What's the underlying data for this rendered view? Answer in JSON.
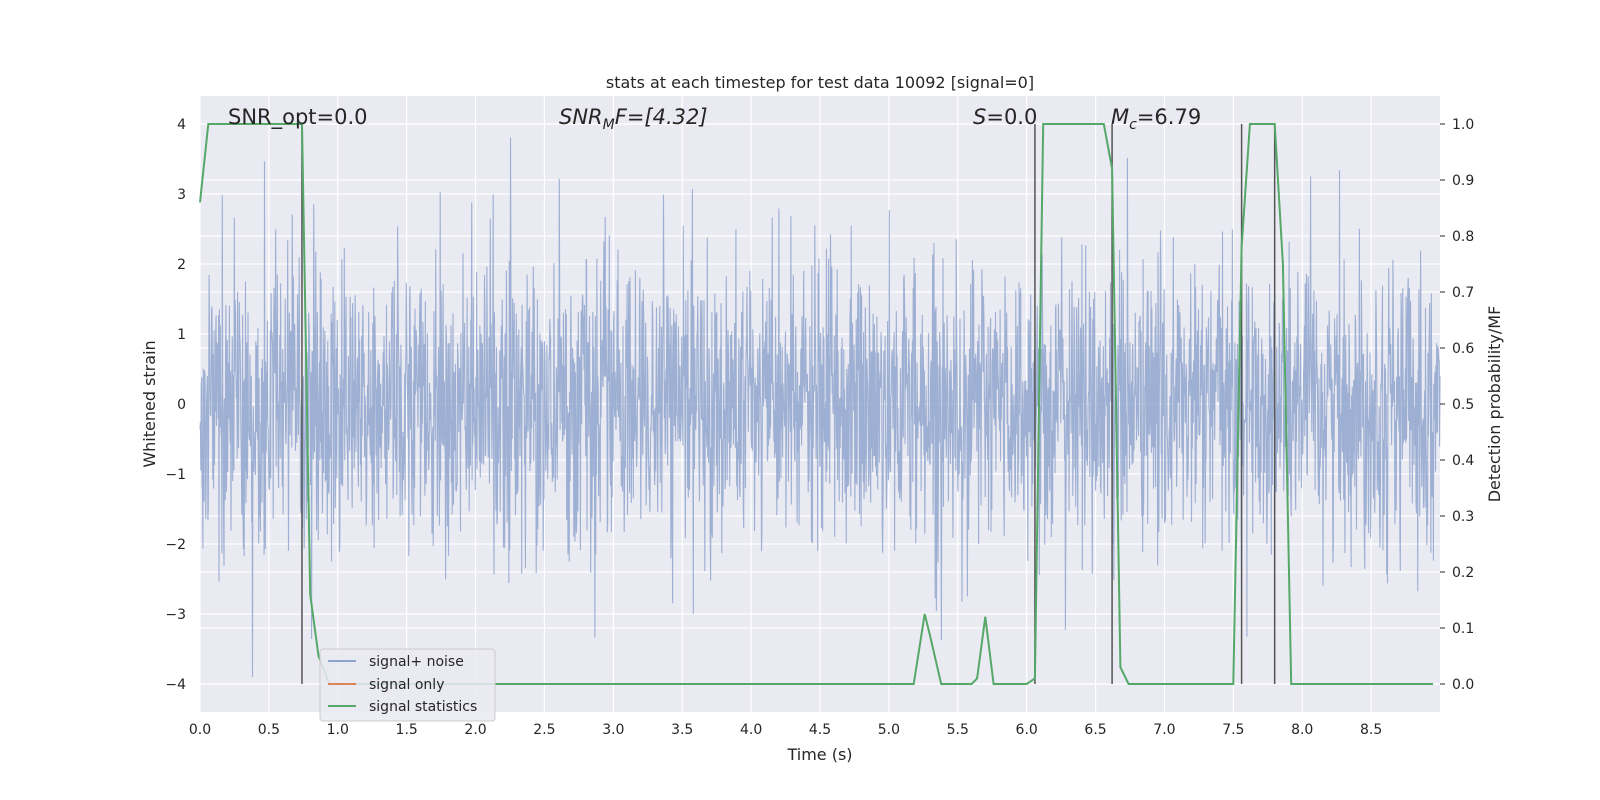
{
  "chart_data": {
    "type": "line",
    "title": "stats at each timestep for test data 10092 [signal=0]",
    "xlabel": "Time (s)",
    "ylabel": "Whitened strain",
    "y2label": "Detection probability/MF",
    "xlim": [
      0.0,
      9.0
    ],
    "ylim": [
      -4.4,
      4.4
    ],
    "y2lim": [
      -0.05,
      1.05
    ],
    "xticks": [
      "0.0",
      "0.5",
      "1.0",
      "1.5",
      "2.0",
      "2.5",
      "3.0",
      "3.5",
      "4.0",
      "4.5",
      "5.0",
      "5.5",
      "6.0",
      "6.5",
      "7.0",
      "7.5",
      "8.0",
      "8.5"
    ],
    "yticks": [
      "4",
      "3",
      "2",
      "1",
      "0",
      "−1",
      "−2",
      "−3",
      "−4"
    ],
    "y2ticks": [
      "1.0",
      "0.9",
      "0.8",
      "0.7",
      "0.6",
      "0.5",
      "0.4",
      "0.3",
      "0.2",
      "0.1",
      "0.0"
    ],
    "grid": true,
    "legend_position": "lower-left",
    "annotations": {
      "snr_opt": "SNR_opt=0.0",
      "snr_mf_base": "SNR",
      "snr_mf_sub": "M",
      "snr_mf_rest": "F=[4.32]",
      "s_base": "S",
      "s_rest": "=0.0",
      "mc_base": "M",
      "mc_sub": "c",
      "mc_rest": "=6.79"
    },
    "series": [
      {
        "name": "signal+ noise",
        "color": "#8fa4cc",
        "noise_sigma": 1.0,
        "x_range": [
          0.0,
          9.0
        ],
        "y_range": [
          -4.0,
          4.0
        ]
      },
      {
        "name": "signal only",
        "color": "#dd8452",
        "x": [],
        "y": []
      },
      {
        "name": "signal statistics",
        "color": "#55a868",
        "axis": "right",
        "x": [
          0.0,
          0.06,
          0.1,
          0.72,
          0.74,
          0.8,
          0.86,
          0.94,
          5.18,
          5.26,
          5.3,
          5.38,
          5.6,
          5.64,
          5.7,
          5.76,
          6.0,
          6.06,
          6.12,
          6.56,
          6.62,
          6.68,
          6.74,
          6.8,
          7.5,
          7.56,
          7.62,
          7.8,
          7.86,
          7.92,
          8.95
        ],
        "y": [
          0.86,
          1.0,
          1.0,
          1.0,
          1.0,
          0.16,
          0.05,
          0.0,
          0.0,
          0.125,
          0.085,
          0.0,
          0.0,
          0.01,
          0.12,
          0.0,
          0.0,
          0.01,
          1.0,
          1.0,
          0.92,
          0.03,
          0.0,
          0.0,
          0.0,
          0.78,
          1.0,
          1.0,
          0.75,
          0.0,
          0.0
        ]
      }
    ],
    "vertical_lines_x": [
      0.74,
      6.06,
      6.62,
      7.56,
      7.8
    ]
  }
}
